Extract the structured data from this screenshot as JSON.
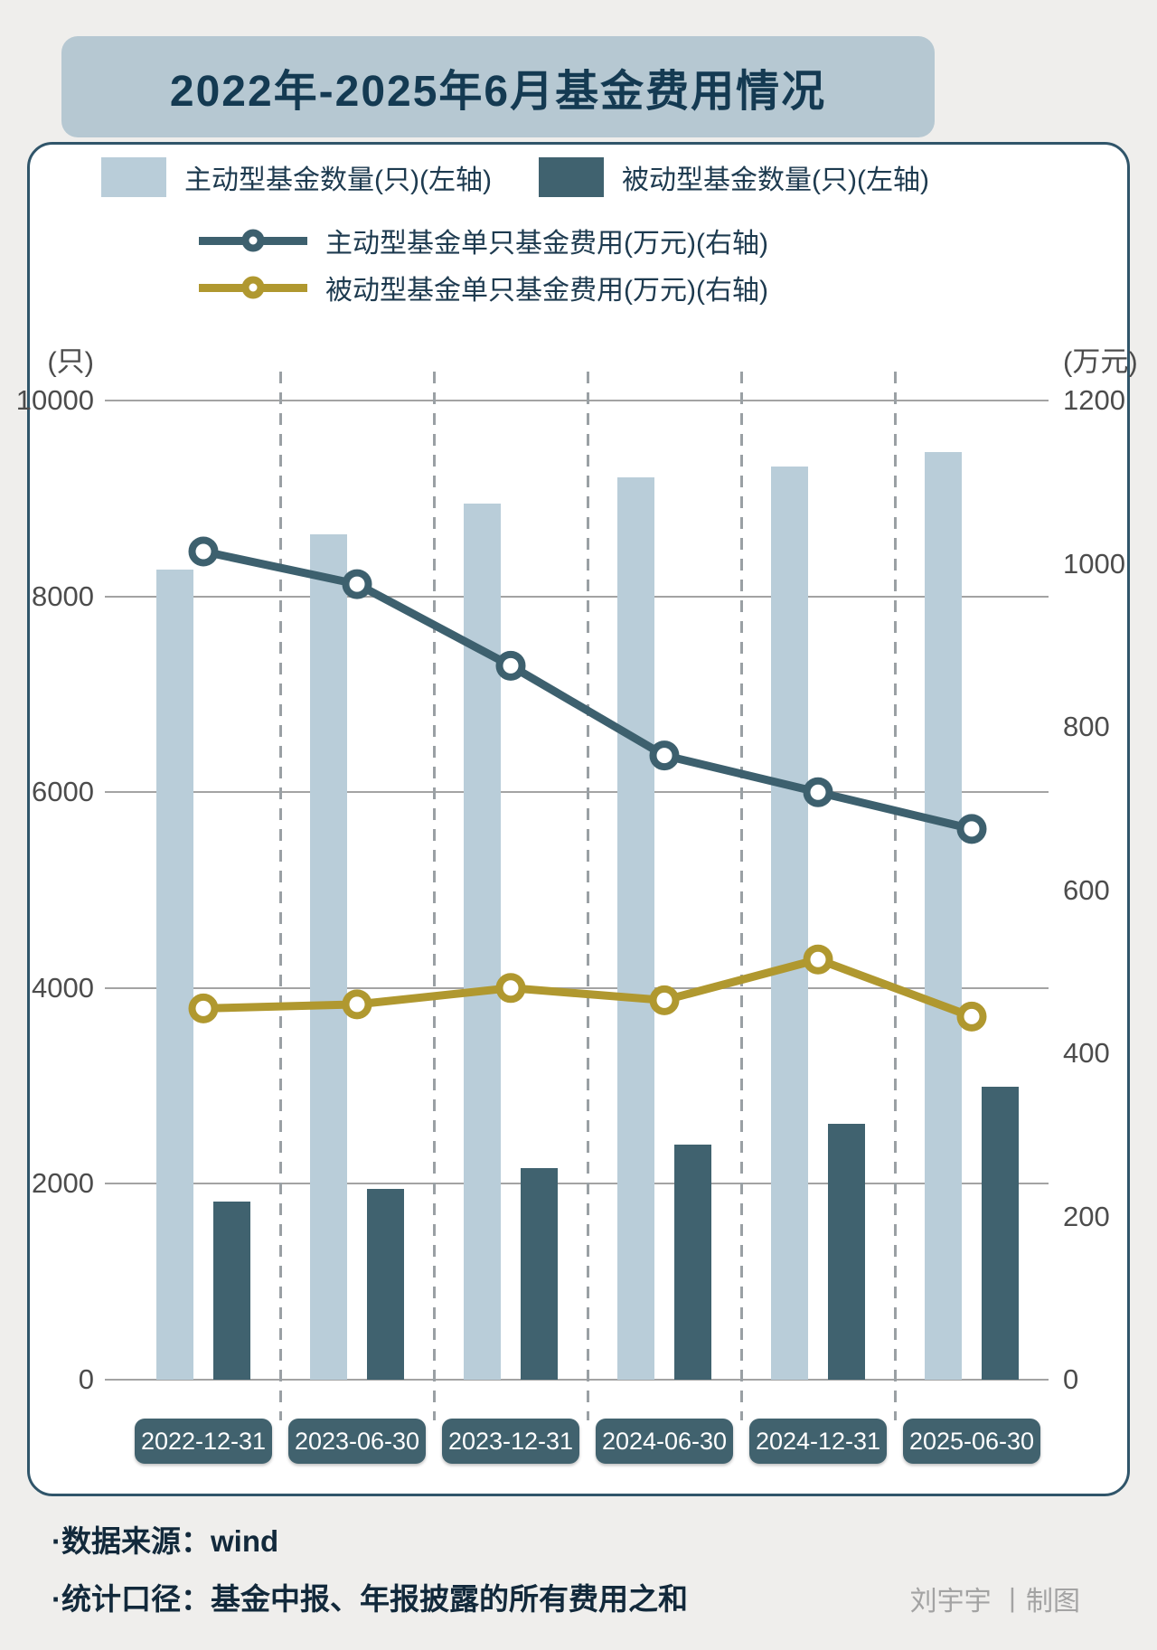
{
  "title": "2022年-2025年6月基金费用情况",
  "legend": [
    {
      "key": "active_count",
      "label": "主动型基金数量(只)(左轴)",
      "type": "square",
      "color": "#b9cdd9"
    },
    {
      "key": "passive_count",
      "label": "被动型基金数量(只)(左轴)",
      "type": "square",
      "color": "#40626f"
    },
    {
      "key": "active_fee",
      "label": "主动型基金单只基金费用(万元)(右轴)",
      "type": "line",
      "color": "#3d606e"
    },
    {
      "key": "passive_fee",
      "label": "被动型基金单只基金费用(万元)(右轴)",
      "type": "line",
      "color": "#b0982f"
    }
  ],
  "left_axis": {
    "unit": "(只)",
    "ticks": [
      "10000",
      "8000",
      "6000",
      "4000",
      "2000",
      "0"
    ]
  },
  "right_axis": {
    "unit": "(万元)",
    "ticks": [
      "1200",
      "1000",
      "800",
      "600",
      "400",
      "200",
      "0"
    ]
  },
  "chart_data": {
    "type": "bar+line combo, dual axis",
    "title": "2022年-2025年6月基金费用情况",
    "categories": [
      "2022-12-31",
      "2023-06-30",
      "2023-12-31",
      "2024-06-30",
      "2024-12-31",
      "2025-06-30"
    ],
    "series": [
      {
        "key": "active_count",
        "name": "主动型基金数量(只)(左轴)",
        "type": "bar",
        "axis": "left",
        "color": "#b9cdd9",
        "values": [
          8270,
          8630,
          8950,
          9215,
          9325,
          9475
        ]
      },
      {
        "key": "passive_count",
        "name": "被动型基金数量(只)(左轴)",
        "type": "bar",
        "axis": "left",
        "color": "#40626f",
        "values": [
          1820,
          1950,
          2160,
          2400,
          2615,
          2990
        ]
      },
      {
        "key": "active_fee",
        "name": "主动型基金单只基金费用(万元)(右轴)",
        "type": "line",
        "axis": "right",
        "color": "#3d606e",
        "values": [
          1015,
          975,
          875,
          765,
          720,
          675
        ]
      },
      {
        "key": "passive_fee",
        "name": "被动型基金单只基金费用(万元)(右轴)",
        "type": "line",
        "axis": "right",
        "color": "#b0982f",
        "values": [
          455,
          460,
          480,
          465,
          515,
          445
        ]
      }
    ],
    "left_ylim": [
      0,
      10000
    ],
    "right_ylim": [
      0,
      1200
    ],
    "grid": true,
    "gridlines": "horizontal, at left-axis ticks every 2000",
    "column_separators": "vertical dashed between categories",
    "legend_position": "top"
  },
  "footer": {
    "source": "·数据来源：wind",
    "caliber": "·统计口径：基金中报、年报披露的所有费用之和",
    "credit": "刘宇宇 丨制图"
  }
}
